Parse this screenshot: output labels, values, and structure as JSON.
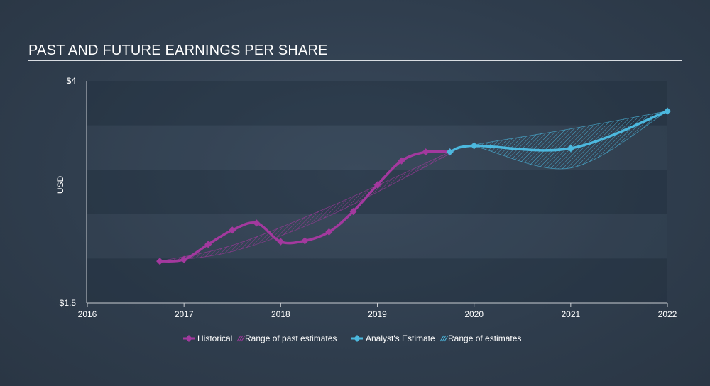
{
  "chart_data": {
    "type": "line",
    "title": "PAST AND FUTURE EARNINGS PER SHARE",
    "ylabel": "USD",
    "xlabel": "",
    "xlim": [
      2016,
      2022
    ],
    "ylim": [
      1.5,
      4
    ],
    "y_tick_labels": [
      {
        "value": 4,
        "label": "$4"
      },
      {
        "value": 1.5,
        "label": "$1.5"
      }
    ],
    "x_ticks": [
      2016,
      2017,
      2018,
      2019,
      2020,
      2021,
      2022
    ],
    "x_tick_labels": [
      "2016",
      "2017",
      "2018",
      "2019",
      "2020",
      "2021",
      "2022"
    ],
    "series": [
      {
        "name": "Historical",
        "color": "#a3399e",
        "points": [
          [
            2016.75,
            1.97
          ],
          [
            2017.0,
            1.99
          ],
          [
            2017.25,
            2.16
          ],
          [
            2017.5,
            2.32
          ],
          [
            2017.75,
            2.4
          ],
          [
            2018.0,
            2.19
          ],
          [
            2018.25,
            2.2
          ],
          [
            2018.5,
            2.3
          ],
          [
            2018.75,
            2.53
          ],
          [
            2019.0,
            2.83
          ],
          [
            2019.25,
            3.1
          ],
          [
            2019.5,
            3.2
          ],
          [
            2019.75,
            3.2
          ]
        ]
      },
      {
        "name": "Analyst's Estimate",
        "color": "#4cb8de",
        "points": [
          [
            2019.75,
            3.2
          ],
          [
            2020.0,
            3.27
          ],
          [
            2021.0,
            3.24
          ],
          [
            2022.0,
            3.66
          ]
        ]
      }
    ],
    "ranges": [
      {
        "name": "Range of past estimates",
        "color": "#a3399e",
        "upper": [
          [
            2016.75,
            1.97
          ],
          [
            2017.5,
            2.15
          ],
          [
            2018.5,
            2.58
          ],
          [
            2019.75,
            3.2
          ]
        ],
        "lower": [
          [
            2016.75,
            1.97
          ],
          [
            2017.5,
            2.08
          ],
          [
            2018.5,
            2.48
          ],
          [
            2019.75,
            3.18
          ]
        ]
      },
      {
        "name": "Range of estimates",
        "color": "#4cb8de",
        "upper": [
          [
            2019.75,
            3.2
          ],
          [
            2020.0,
            3.28
          ],
          [
            2021.0,
            3.46
          ],
          [
            2022.0,
            3.66
          ]
        ],
        "lower": [
          [
            2019.75,
            3.2
          ],
          [
            2020.0,
            3.26
          ],
          [
            2021.0,
            3.02
          ],
          [
            2022.0,
            3.66
          ]
        ]
      }
    ],
    "legend": [
      {
        "label": "Historical",
        "kind": "line",
        "color": "#a3399e"
      },
      {
        "label": "Range of past estimates",
        "kind": "range",
        "color": "#a3399e"
      },
      {
        "label": "Analyst's Estimate",
        "kind": "line",
        "color": "#4cb8de"
      },
      {
        "label": "Range of estimates",
        "kind": "range",
        "color": "#4cb8de"
      }
    ],
    "legend_position": "bottom-center"
  }
}
